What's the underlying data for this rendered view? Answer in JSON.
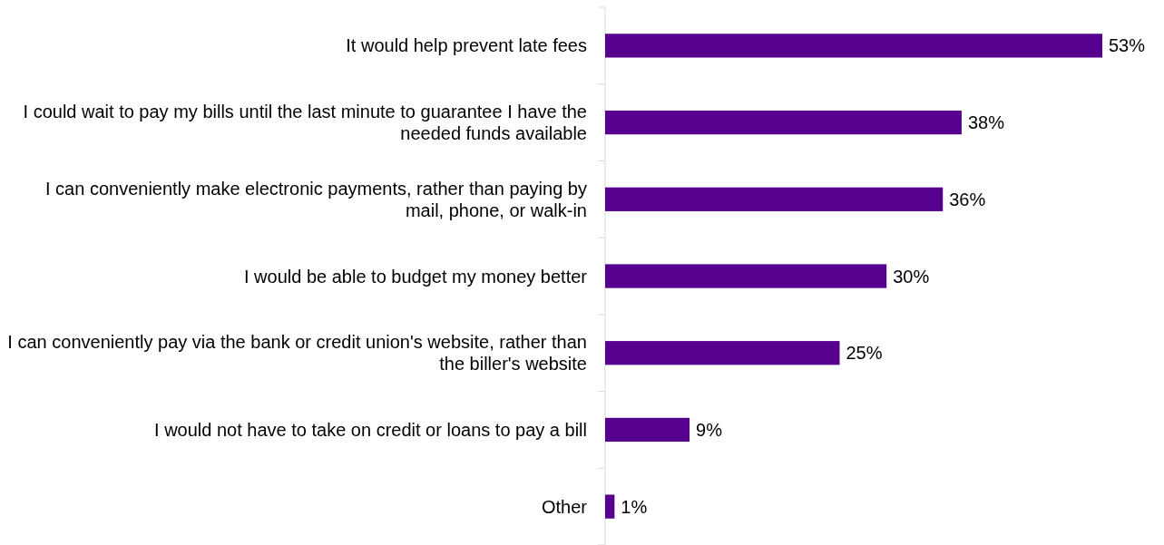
{
  "chart_data": {
    "type": "bar",
    "orientation": "horizontal",
    "categories": [
      "It would help prevent late fees",
      "I could wait to pay my bills until the last minute to guarantee I have the needed funds available",
      "I can conveniently make electronic payments, rather than paying by mail, phone, or walk-in",
      "I would be able to budget my money better",
      "I can conveniently pay via the bank or credit union's website, rather than the biller's website",
      "I would not have to take on credit or loans to pay a bill",
      "Other"
    ],
    "values": [
      53,
      38,
      36,
      30,
      25,
      9,
      1
    ],
    "value_labels": [
      "53%",
      "38%",
      "36%",
      "30%",
      "25%",
      "9%",
      "1%"
    ],
    "color": "#55008f"
  }
}
